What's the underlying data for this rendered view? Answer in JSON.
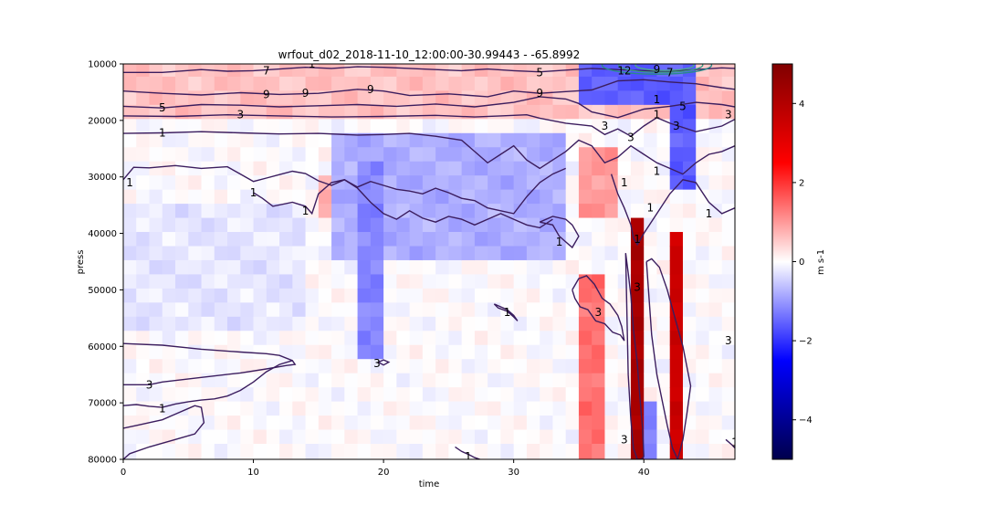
{
  "chart_data": {
    "type": "heatmap",
    "title": "wrfout_d02_2018-11-10_12:00:00-30.99443 - -65.8992",
    "xlabel": "time",
    "ylabel": "press",
    "colorbar_label": "m s-1",
    "xlim": [
      0,
      47
    ],
    "ylim": [
      80000,
      10000
    ],
    "y_inverted": true,
    "x_ticks": [
      "0",
      "10",
      "20",
      "30",
      "40"
    ],
    "y_ticks": [
      "10000",
      "20000",
      "30000",
      "40000",
      "50000",
      "60000",
      "70000",
      "80000"
    ],
    "colorbar_ticks": [
      "4",
      "2",
      "0",
      "−2",
      "−4"
    ],
    "colorbar_range": [
      -5,
      5
    ],
    "colormap": "seismic",
    "grid": false,
    "pressure_levels": [
      11000,
      13500,
      16000,
      18500,
      21000,
      23500,
      26000,
      28500,
      31000,
      33500,
      36000,
      38500,
      41000,
      43500,
      46000,
      48500,
      51000,
      53500,
      56000,
      58500,
      61000,
      63500,
      66000,
      68500,
      71000,
      73500,
      76000,
      78500
    ],
    "shading_features": [
      {
        "name": "upper positive band",
        "x": [
          0,
          47
        ],
        "p": [
          10000,
          20000
        ],
        "value": 0.6
      },
      {
        "name": "upper-right negative jet core",
        "x": [
          35,
          44
        ],
        "p": [
          10000,
          16000
        ],
        "value": -1.6
      },
      {
        "name": "mid-level negative band",
        "x": [
          16,
          34
        ],
        "p": [
          23000,
          45000
        ],
        "value": -0.8
      },
      {
        "name": "negative column near t=19",
        "x": [
          18.5,
          20
        ],
        "p": [
          28000,
          62000
        ],
        "value": -1.2
      },
      {
        "name": "positive column near t=15",
        "x": [
          15,
          16
        ],
        "p": [
          30000,
          38000
        ],
        "value": 0.8
      },
      {
        "name": "strong positive column t=39",
        "x": [
          39,
          40
        ],
        "p": [
          37000,
          80000
        ],
        "value": 4.2
      },
      {
        "name": "strong positive column t=42",
        "x": [
          42,
          43
        ],
        "p": [
          40000,
          80000
        ],
        "value": 3.5
      },
      {
        "name": "negative column t=40",
        "x": [
          40,
          41
        ],
        "p": [
          69000,
          80000
        ],
        "value": -1.2
      },
      {
        "name": "negative column t=43",
        "x": [
          42.5,
          44
        ],
        "p": [
          15000,
          32000
        ],
        "value": -1.6
      },
      {
        "name": "positive band t=35-37",
        "x": [
          35,
          37.5
        ],
        "p": [
          48000,
          80000
        ],
        "value": 1.4
      },
      {
        "name": "positive upper column t=36",
        "x": [
          35,
          38.5
        ],
        "p": [
          25000,
          37000
        ],
        "value": 1.0
      },
      {
        "name": "lower-left weak negative",
        "x": [
          0,
          14
        ],
        "p": [
          36000,
          56000
        ],
        "value": -0.25
      }
    ],
    "contour_color": "#3b1d5e",
    "contour_labels": [
      {
        "text": "7",
        "x": 11.0,
        "p": 11200
      },
      {
        "text": "1",
        "x": 14.5,
        "p": 10000
      },
      {
        "text": "5",
        "x": 3.0,
        "p": 17800
      },
      {
        "text": "3",
        "x": 9.0,
        "p": 19000
      },
      {
        "text": "1",
        "x": 3.0,
        "p": 22200
      },
      {
        "text": "9",
        "x": 11.0,
        "p": 15400
      },
      {
        "text": "9",
        "x": 14.0,
        "p": 15200
      },
      {
        "text": "9",
        "x": 19.0,
        "p": 14500
      },
      {
        "text": "5",
        "x": 32.0,
        "p": 11500
      },
      {
        "text": "9",
        "x": 32.0,
        "p": 15200
      },
      {
        "text": "12",
        "x": 38.5,
        "p": 11200
      },
      {
        "text": "9",
        "x": 41.0,
        "p": 11000
      },
      {
        "text": "7",
        "x": 42.0,
        "p": 11500
      },
      {
        "text": "1",
        "x": 41.0,
        "p": 16300
      },
      {
        "text": "1",
        "x": 41.0,
        "p": 19000
      },
      {
        "text": "3",
        "x": 37.0,
        "p": 21000
      },
      {
        "text": "3",
        "x": 39.0,
        "p": 23000
      },
      {
        "text": "3",
        "x": 42.5,
        "p": 21000
      },
      {
        "text": "5",
        "x": 43.0,
        "p": 17500
      },
      {
        "text": "3",
        "x": 46.5,
        "p": 19000
      },
      {
        "text": "1",
        "x": 0.5,
        "p": 31000
      },
      {
        "text": "1",
        "x": 10.0,
        "p": 32800
      },
      {
        "text": "1",
        "x": 14.0,
        "p": 36000
      },
      {
        "text": "1",
        "x": 38.5,
        "p": 31000
      },
      {
        "text": "1",
        "x": 41.0,
        "p": 29000
      },
      {
        "text": "1",
        "x": 40.5,
        "p": 35500
      },
      {
        "text": "1",
        "x": 45.0,
        "p": 36500
      },
      {
        "text": "1",
        "x": 39.5,
        "p": 41000
      },
      {
        "text": "1",
        "x": 33.5,
        "p": 41500
      },
      {
        "text": "3",
        "x": 39.5,
        "p": 49500
      },
      {
        "text": "1",
        "x": 29.5,
        "p": 54000
      },
      {
        "text": "3",
        "x": 36.5,
        "p": 54000
      },
      {
        "text": "3",
        "x": 46.5,
        "p": 59000
      },
      {
        "text": "3",
        "x": 19.5,
        "p": 63000
      },
      {
        "text": "3",
        "x": 2.0,
        "p": 66800
      },
      {
        "text": "1",
        "x": 3.0,
        "p": 71000
      },
      {
        "text": "3",
        "x": 38.5,
        "p": 76500
      },
      {
        "text": "1",
        "x": 26.5,
        "p": 79500
      },
      {
        "text": "1",
        "x": 47.0,
        "p": 77000
      }
    ],
    "contours": [
      {
        "level": "7",
        "x": [
          0,
          3,
          6,
          8,
          10,
          12,
          14,
          16,
          18,
          20,
          22,
          24,
          26,
          28,
          30,
          32,
          34,
          36,
          38,
          40,
          42,
          44,
          46,
          47
        ],
        "p": [
          11500,
          11500,
          11000,
          11300,
          11200,
          10900,
          10600,
          10800,
          10500,
          10600,
          10800,
          11000,
          11200,
          10900,
          11200,
          11400,
          11100,
          10800,
          11000,
          11200,
          11300,
          11000,
          10700,
          10800
        ]
      },
      {
        "level": "9",
        "x": [
          0,
          3,
          6,
          9,
          12,
          15,
          18,
          20,
          22,
          25,
          28,
          30,
          32,
          34,
          36,
          38,
          40,
          42,
          44,
          46,
          47
        ],
        "p": [
          14800,
          15200,
          15500,
          15100,
          15400,
          15200,
          14500,
          14800,
          15600,
          15300,
          15800,
          14800,
          15200,
          14900,
          14600,
          13000,
          12800,
          13200,
          13500,
          14200,
          14500
        ]
      },
      {
        "level": "5",
        "x": [
          0,
          3,
          6,
          9,
          12,
          15,
          18,
          21,
          24,
          27,
          30,
          32,
          34,
          35,
          36,
          38,
          40,
          42,
          44,
          46,
          47
        ],
        "p": [
          17500,
          17800,
          17200,
          17300,
          17600,
          17400,
          17200,
          17500,
          17100,
          17600,
          16800,
          15800,
          16200,
          17000,
          18500,
          19500,
          18000,
          17500,
          16800,
          17200,
          17600
        ]
      },
      {
        "level": "3",
        "x": [
          0,
          4,
          8,
          12,
          16,
          20,
          24,
          27,
          29,
          31,
          32,
          34,
          36,
          37,
          38,
          39,
          40,
          41,
          42,
          44,
          46,
          47
        ],
        "p": [
          19200,
          19300,
          19000,
          19200,
          19400,
          19300,
          19100,
          19400,
          19200,
          19000,
          19600,
          20500,
          21000,
          22500,
          21500,
          22800,
          21000,
          19500,
          20500,
          22000,
          21000,
          19800
        ]
      },
      {
        "level": "1",
        "x": [
          0,
          3,
          6,
          9,
          12,
          15,
          18,
          20,
          22,
          24,
          26,
          27,
          28,
          29,
          30,
          31,
          32,
          33,
          34,
          35,
          36,
          37,
          38,
          39,
          40,
          41,
          42,
          43,
          44,
          45,
          46,
          47
        ],
        "p": [
          22300,
          22200,
          22000,
          22200,
          22400,
          22300,
          22600,
          22500,
          22300,
          22800,
          23500,
          25500,
          27500,
          26000,
          24500,
          27000,
          28500,
          27000,
          25500,
          23500,
          24500,
          27500,
          26500,
          24500,
          26000,
          27500,
          28500,
          29500,
          27500,
          26000,
          25500,
          24500
        ]
      },
      {
        "level": "1",
        "x": [
          0,
          0.8,
          2,
          4,
          6,
          8,
          9,
          10,
          11,
          12,
          13,
          14,
          15,
          16,
          17,
          18,
          19,
          20,
          21,
          22,
          23,
          24,
          25,
          26,
          27,
          28,
          29,
          30,
          31,
          32,
          33,
          34
        ],
        "p": [
          30500,
          28300,
          28400,
          28000,
          28500,
          28200,
          29500,
          30800,
          30200,
          29600,
          29000,
          29400,
          30700,
          31500,
          30500,
          31800,
          30800,
          31500,
          32200,
          32500,
          33000,
          32000,
          32800,
          33800,
          34200,
          35500,
          36000,
          36500,
          33500,
          31000,
          29500,
          28500
        ]
      },
      {
        "level": "1",
        "x": [
          10,
          10.7,
          11.5,
          13,
          14,
          14.5,
          15,
          16,
          17,
          18,
          19,
          20,
          21,
          22,
          23,
          24,
          25,
          26,
          27,
          28,
          29,
          30,
          31,
          32,
          33
        ],
        "p": [
          32800,
          33800,
          35200,
          34500,
          35200,
          36500,
          33000,
          31000,
          30500,
          32000,
          34500,
          36500,
          37500,
          36000,
          37300,
          38000,
          37000,
          37500,
          38500,
          37500,
          36500,
          37500,
          38500,
          39000,
          37500
        ]
      },
      {
        "level": "1",
        "x": [
          37.5,
          38,
          38.5,
          39,
          39.2,
          39.5,
          40,
          41,
          42,
          43,
          44,
          45,
          46,
          47
        ],
        "p": [
          29500,
          33000,
          35500,
          38500,
          40800,
          42000,
          40000,
          36500,
          33000,
          30500,
          31000,
          34500,
          36500,
          35500
        ]
      },
      {
        "level": "1",
        "x": [
          32,
          33,
          33.5,
          34,
          34.5,
          35,
          34.5,
          34,
          33,
          32
        ],
        "p": [
          38000,
          38500,
          40500,
          41500,
          42500,
          40500,
          38500,
          37500,
          37000,
          38000
        ]
      },
      {
        "level": "1",
        "x": [
          28.5,
          29.5,
          30,
          30.3,
          30,
          29.5,
          28.8,
          28.5
        ],
        "p": [
          52500,
          53500,
          54500,
          55500,
          54800,
          53800,
          53200,
          52500
        ]
      },
      {
        "level": "3",
        "x": [
          34.5,
          35,
          35.6,
          36.2,
          36.8,
          37.4,
          38,
          38.3,
          38.5,
          38.2,
          37.6,
          37,
          36.3,
          35.7,
          35.1,
          34.7,
          34.5
        ],
        "p": [
          50000,
          48000,
          47500,
          49000,
          51500,
          52500,
          54500,
          56500,
          59000,
          58000,
          57500,
          56000,
          55500,
          53500,
          53000,
          51500,
          50000
        ]
      },
      {
        "level": "3",
        "x": [
          38.6,
          38.8,
          39,
          39.2,
          39.5,
          39.7,
          39.9,
          40,
          39.8,
          39.5,
          39.2,
          39,
          38.8,
          38.6
        ],
        "p": [
          43500,
          47000,
          51000,
          57000,
          63000,
          69000,
          74500,
          79500,
          80000,
          80000,
          78000,
          73000,
          65000,
          43500
        ]
      },
      {
        "level": "3",
        "x": [
          40.2,
          40.6,
          41.2,
          41.8,
          42.4,
          43,
          43.6,
          43.3,
          43,
          42.6,
          42.2,
          41.8,
          41.4,
          41,
          40.6,
          40.2
        ],
        "p": [
          45000,
          44500,
          46000,
          50000,
          55000,
          60000,
          67000,
          72000,
          76500,
          80000,
          78000,
          74000,
          69500,
          65000,
          58000,
          45000
        ]
      },
      {
        "level": "3",
        "x": [
          0,
          3,
          6,
          9,
          11,
          12,
          13,
          13.2,
          12.5,
          11,
          9,
          6,
          3,
          2,
          0
        ],
        "p": [
          59500,
          59800,
          60500,
          61000,
          61300,
          61600,
          62500,
          63200,
          63400,
          64000,
          64700,
          65500,
          66300,
          66800,
          66800
        ]
      },
      {
        "level": "1",
        "x": [
          0,
          1,
          2,
          3,
          4,
          5,
          5.5,
          6,
          6.2,
          5.5,
          4,
          2,
          0.5,
          0
        ],
        "p": [
          74500,
          74000,
          73500,
          73000,
          72000,
          71000,
          70500,
          70800,
          73500,
          75500,
          76500,
          77800,
          79000,
          80000
        ]
      },
      {
        "level": "1",
        "x": [
          0,
          1,
          2,
          3,
          4,
          5,
          6,
          7,
          8,
          9,
          10,
          11,
          12,
          13
        ],
        "p": [
          70500,
          70300,
          70600,
          70800,
          70200,
          69800,
          69500,
          69300,
          68800,
          67800,
          66300,
          64500,
          63200,
          62500
        ]
      },
      {
        "level": "1",
        "x": [
          19.6,
          20,
          20.4,
          20,
          19.6
        ],
        "p": [
          62800,
          62400,
          62800,
          63300,
          62800
        ]
      },
      {
        "level": "1",
        "x": [
          25.5,
          26,
          26.6,
          27,
          27.4
        ],
        "p": [
          77800,
          78600,
          79200,
          79700,
          80000
        ]
      },
      {
        "level": "1",
        "x": [
          46.3,
          46.8,
          47
        ],
        "p": [
          76500,
          77500,
          78000
        ]
      }
    ]
  }
}
